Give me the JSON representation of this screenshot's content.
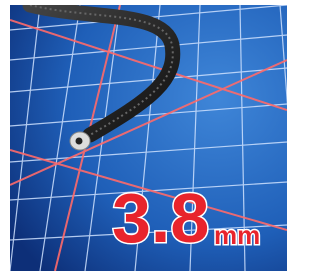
{
  "label": {
    "size": "3.8",
    "unit": "mm"
  }
}
